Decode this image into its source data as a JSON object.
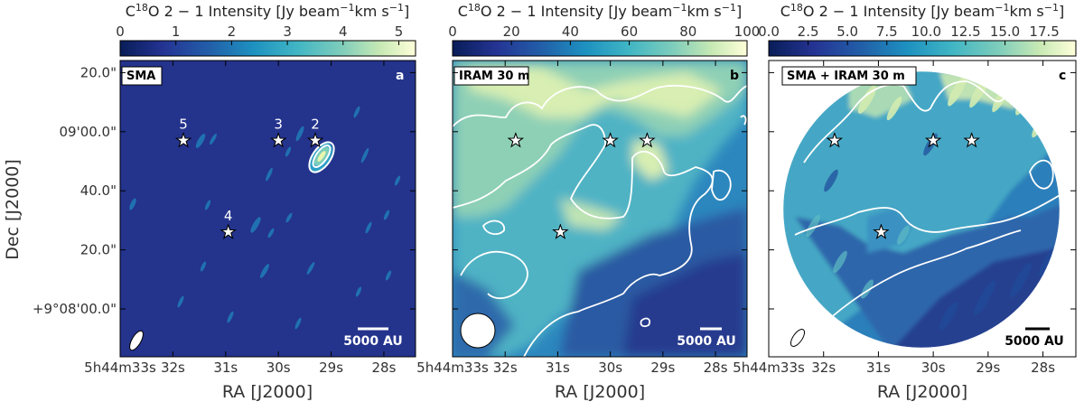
{
  "colors": {
    "map_base": "#24338c",
    "contour": "#ffffff",
    "star_fill": "#ffffff",
    "star_stroke": "#000000"
  },
  "chart_data": [
    {
      "type": "heatmap",
      "panel_id": "a",
      "label_box": "SMA",
      "panel_letter": "a",
      "colorbar": {
        "title_pre": "C",
        "title_sup": "18",
        "title_post": "O 2 − 1 Intensity [Jy beam",
        "title_unit_sup1": "−1",
        "title_mid": "km s",
        "title_unit_sup2": "−1",
        "title_end": "]",
        "range": [
          0,
          5.3
        ],
        "ticks": [
          "0",
          "1",
          "2",
          "3",
          "4",
          "5"
        ],
        "tick_values": [
          0,
          1,
          2,
          3,
          4,
          5
        ]
      },
      "xlabel": "RA [J2000]",
      "ylabel": "Dec [J2000]",
      "xticks": [
        "5h44m33s",
        "32s",
        "31s",
        "30s",
        "29s",
        "28s"
      ],
      "yticks": [
        "20.0\"",
        "09'00.0\"",
        "40.0\"",
        "20.0\"",
        "+9°08'00.0\""
      ],
      "stars": [
        {
          "id": "5",
          "label": "5",
          "ra_s": 31.8,
          "dec_s": 57
        },
        {
          "id": "3",
          "label": "3",
          "ra_s": 30.0,
          "dec_s": 57
        },
        {
          "id": "2",
          "label": "2",
          "ra_s": 29.3,
          "dec_s": 57
        },
        {
          "id": "4",
          "label": "4",
          "ra_s": 30.95,
          "dec_s": 26
        }
      ],
      "scalebar": "5000 AU",
      "beam": "ellipse"
    },
    {
      "type": "heatmap",
      "panel_id": "b",
      "label_box": "IRAM 30 m",
      "panel_letter": "b",
      "colorbar": {
        "range": [
          0,
          100
        ],
        "ticks": [
          "0",
          "20",
          "40",
          "60",
          "80",
          "100"
        ],
        "tick_values": [
          0,
          20,
          40,
          60,
          80,
          100
        ]
      },
      "xlabel": "RA [J2000]",
      "xticks": [
        "5h44m33s",
        "32s",
        "31s",
        "30s",
        "29s",
        "28s"
      ],
      "stars": [
        {
          "id": "5",
          "ra_s": 31.8,
          "dec_s": 57
        },
        {
          "id": "3",
          "ra_s": 30.0,
          "dec_s": 57
        },
        {
          "id": "2",
          "ra_s": 29.3,
          "dec_s": 57
        },
        {
          "id": "4",
          "ra_s": 30.95,
          "dec_s": 26
        }
      ],
      "scalebar": "5000 AU",
      "beam": "circle"
    },
    {
      "type": "heatmap",
      "panel_id": "c",
      "label_box": "SMA + IRAM 30 m",
      "panel_letter": "c",
      "colorbar": {
        "range": [
          0,
          19.5
        ],
        "ticks": [
          "0.0",
          "2.5",
          "5.0",
          "7.5",
          "10.0",
          "12.5",
          "15.0",
          "17.5"
        ],
        "tick_values": [
          0,
          2.5,
          5,
          7.5,
          10,
          12.5,
          15,
          17.5
        ]
      },
      "xlabel": "RA [J2000]",
      "xticks": [
        "5h44m33s",
        "32s",
        "31s",
        "30s",
        "29s",
        "28s"
      ],
      "stars": [
        {
          "id": "5",
          "ra_s": 31.8,
          "dec_s": 57
        },
        {
          "id": "3",
          "ra_s": 30.0,
          "dec_s": 57
        },
        {
          "id": "2",
          "ra_s": 29.3,
          "dec_s": 57
        },
        {
          "id": "4",
          "ra_s": 30.95,
          "dec_s": 26
        }
      ],
      "scalebar": "5000 AU",
      "beam": "ellipse"
    }
  ]
}
